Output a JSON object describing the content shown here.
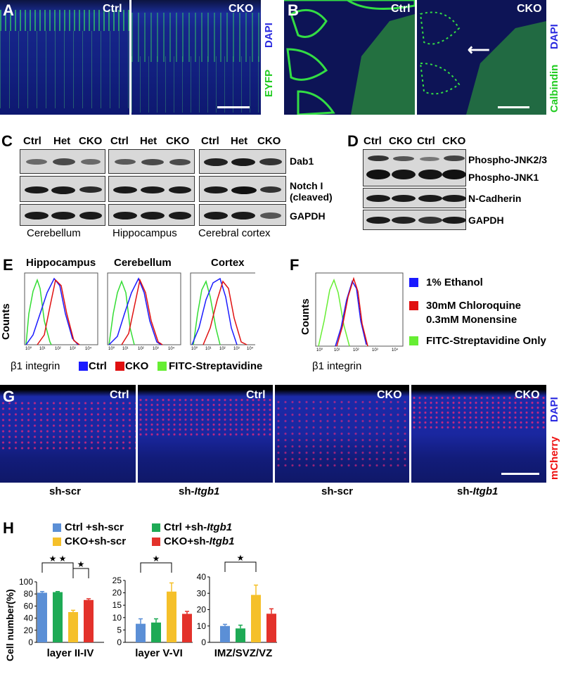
{
  "panelA": {
    "letter": "A",
    "left_label": "Ctrl",
    "right_label": "CKO",
    "stain1": "DAPI",
    "stain2": "EYFP"
  },
  "panelB": {
    "letter": "B",
    "left_label": "Ctrl",
    "right_label": "CKO",
    "stain1": "DAPI",
    "stain2": "Calbindin"
  },
  "panelC": {
    "letter": "C",
    "groups": [
      {
        "name": "Cerebellum",
        "lanes": [
          "Ctrl",
          "Het",
          "CKO"
        ]
      },
      {
        "name": "Hippocampus",
        "lanes": [
          "Ctrl",
          "Het",
          "CKO"
        ]
      },
      {
        "name": "Cerebral cortex",
        "lanes": [
          "Ctrl",
          "Het",
          "CKO"
        ]
      }
    ],
    "rows": [
      "Dab1",
      "Notch I",
      "(cleaved)",
      "GAPDH"
    ]
  },
  "panelD": {
    "letter": "D",
    "lanes": [
      "Ctrl",
      "CKO",
      "Ctrl",
      "CKO"
    ],
    "rows": [
      "Phospho-JNK2/3",
      "Phospho-JNK1",
      "N-Cadherin",
      "GAPDH"
    ]
  },
  "panelE": {
    "letter": "E",
    "titles": [
      "Hippocampus",
      "Cerebellum",
      "Cortex"
    ],
    "ylabel": "Counts",
    "xlabel": "β1 integrin",
    "legend": [
      "Ctrl",
      "CKO",
      "FITC-Streptavidine"
    ],
    "colors": {
      "ctrl": "#1a1aff",
      "cko": "#e01010",
      "fitc": "#33dd33"
    }
  },
  "panelF": {
    "letter": "F",
    "ylabel": "Counts",
    "xlabel": "β1 integrin",
    "legend": [
      "1% Ethanol",
      "30mM Chloroquine",
      "0.3mM Monensine",
      "FITC-Streptavidine Only"
    ],
    "colors": {
      "ethanol": "#1a1aff",
      "chloroquine": "#e01010",
      "fitc": "#66ee33"
    }
  },
  "panelG": {
    "letter": "G",
    "labels": [
      "Ctrl",
      "Ctrl",
      "CKO",
      "CKO"
    ],
    "stain1": "DAPI",
    "stain2": "mCherry",
    "captions": [
      "sh-scr",
      "sh-",
      "Itgb1",
      "sh-scr",
      "sh-",
      "Itgb1"
    ]
  },
  "panelH": {
    "letter": "H",
    "legend": {
      "a": "Ctrl +sh-scr",
      "b": "Ctrl +sh-",
      "c": "CKO+sh-scr",
      "d": "CKO+sh-",
      "italic": "Itgb1"
    },
    "ylabel": "Cell number(%)",
    "colors": [
      "#5b8fd6",
      "#1eaa55",
      "#f5c02a",
      "#e3322b"
    ],
    "star": "★"
  },
  "chart_data": [
    {
      "type": "bar",
      "title": "",
      "xlabel": "layer II-IV",
      "ylabel": "Cell number(%)",
      "ylim": [
        0,
        100
      ],
      "yticks": [
        "0",
        "20",
        "40",
        "60",
        "80",
        "100"
      ],
      "categories": [
        "Ctrl +sh-scr",
        "Ctrl +sh-Itgb1",
        "CKO+sh-scr",
        "CKO+sh-Itgb1"
      ],
      "values": [
        82,
        83,
        50,
        70
      ],
      "errors": [
        2,
        1,
        3,
        2
      ]
    },
    {
      "type": "bar",
      "title": "",
      "xlabel": "layer V-VI",
      "ylabel": "",
      "ylim": [
        0,
        25
      ],
      "yticks": [
        "0",
        "5",
        "10",
        "15",
        "20",
        "25"
      ],
      "categories": [
        "Ctrl +sh-scr",
        "Ctrl +sh-Itgb1",
        "CKO+sh-scr",
        "CKO+sh-Itgb1"
      ],
      "values": [
        7.5,
        8,
        20.5,
        11.5
      ],
      "errors": [
        2,
        1.5,
        3.5,
        1
      ]
    },
    {
      "type": "bar",
      "title": "",
      "xlabel": "IMZ/SVZ/VZ",
      "ylabel": "",
      "ylim": [
        0,
        40
      ],
      "yticks": [
        "0",
        "10",
        "20",
        "30",
        "40"
      ],
      "categories": [
        "Ctrl +sh-scr",
        "Ctrl +sh-Itgb1",
        "CKO+sh-scr",
        "CKO+sh-Itgb1"
      ],
      "values": [
        10,
        8.5,
        29,
        17.5
      ],
      "errors": [
        1,
        2,
        6,
        3
      ]
    }
  ]
}
